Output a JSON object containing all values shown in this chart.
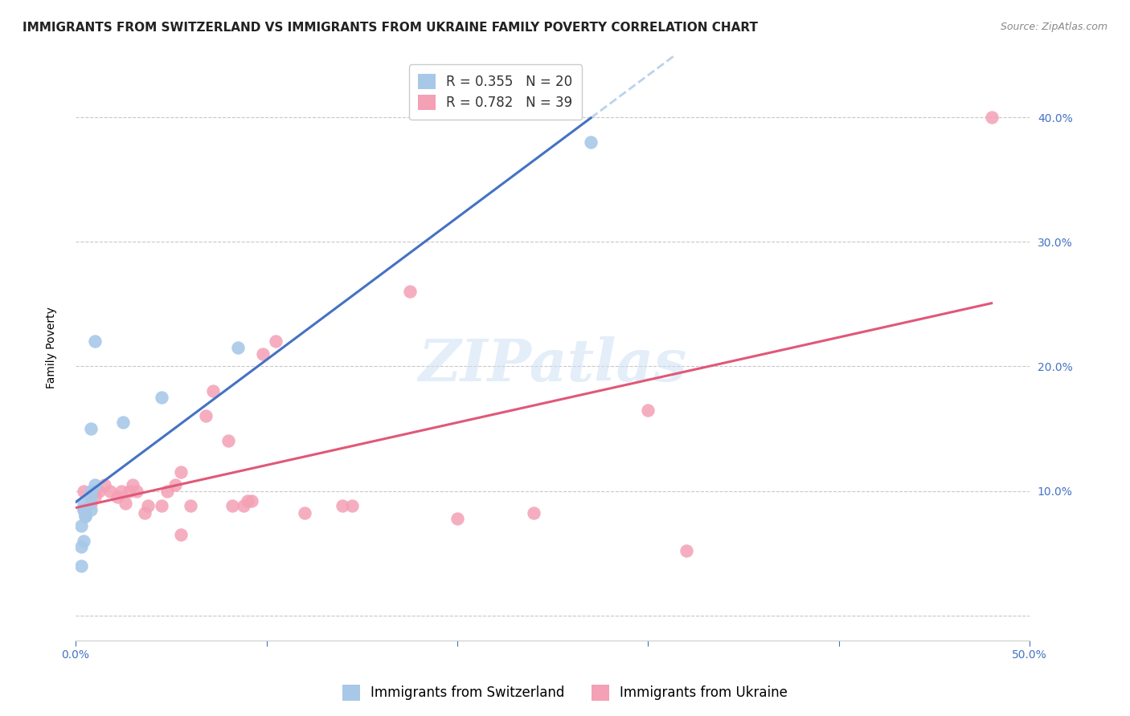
{
  "title": "IMMIGRANTS FROM SWITZERLAND VS IMMIGRANTS FROM UKRAINE FAMILY POVERTY CORRELATION CHART",
  "source": "Source: ZipAtlas.com",
  "ylabel": "Family Poverty",
  "xlim": [
    0.0,
    0.5
  ],
  "ylim": [
    -0.02,
    0.45
  ],
  "ytick_values": [
    0.0,
    0.1,
    0.2,
    0.3,
    0.4
  ],
  "ytick_labels": [
    "",
    "10.0%",
    "20.0%",
    "30.0%",
    "40.0%"
  ],
  "xtick_values": [
    0.0,
    0.1,
    0.2,
    0.3,
    0.4,
    0.5
  ],
  "xtick_labels": [
    "0.0%",
    "",
    "",
    "",
    "",
    "50.0%"
  ],
  "watermark": "ZIPatlas",
  "switzerland_x": [
    0.008,
    0.008,
    0.01,
    0.004,
    0.004,
    0.008,
    0.005,
    0.003,
    0.004,
    0.003,
    0.025,
    0.045,
    0.085,
    0.004,
    0.003,
    0.005,
    0.008,
    0.27,
    0.01,
    0.005
  ],
  "switzerland_y": [
    0.095,
    0.1,
    0.105,
    0.085,
    0.09,
    0.085,
    0.082,
    0.072,
    0.06,
    0.055,
    0.155,
    0.175,
    0.215,
    0.085,
    0.04,
    0.08,
    0.15,
    0.38,
    0.22,
    0.08
  ],
  "ukraine_x": [
    0.004,
    0.008,
    0.01,
    0.01,
    0.012,
    0.015,
    0.018,
    0.022,
    0.024,
    0.026,
    0.028,
    0.03,
    0.032,
    0.036,
    0.038,
    0.045,
    0.048,
    0.052,
    0.055,
    0.06,
    0.068,
    0.072,
    0.08,
    0.082,
    0.088,
    0.09,
    0.092,
    0.098,
    0.105,
    0.12,
    0.14,
    0.145,
    0.175,
    0.2,
    0.24,
    0.3,
    0.32,
    0.48,
    0.055
  ],
  "ukraine_y": [
    0.1,
    0.09,
    0.095,
    0.1,
    0.1,
    0.105,
    0.1,
    0.095,
    0.1,
    0.09,
    0.1,
    0.105,
    0.1,
    0.082,
    0.088,
    0.088,
    0.1,
    0.105,
    0.115,
    0.088,
    0.16,
    0.18,
    0.14,
    0.088,
    0.088,
    0.092,
    0.092,
    0.21,
    0.22,
    0.082,
    0.088,
    0.088,
    0.26,
    0.078,
    0.082,
    0.165,
    0.052,
    0.4,
    0.065
  ],
  "switzerland_color": "#a8c8e8",
  "ukraine_color": "#f4a0b5",
  "switzerland_line_color": "#4472c4",
  "ukraine_line_color": "#e05878",
  "dashed_line_color": "#a8c8e8",
  "sw_line_x": [
    0.0,
    0.27
  ],
  "uk_line_x": [
    0.0,
    0.48
  ],
  "dash_line_x": [
    0.27,
    0.5
  ],
  "R_switzerland": 0.355,
  "N_switzerland": 20,
  "R_ukraine": 0.782,
  "N_ukraine": 39,
  "legend_label_switzerland": "Immigrants from Switzerland",
  "legend_label_ukraine": "Immigrants from Ukraine",
  "title_fontsize": 11,
  "axis_label_fontsize": 10,
  "tick_fontsize": 10,
  "legend_fontsize": 12,
  "source_fontsize": 9,
  "watermark_fontsize": 52
}
